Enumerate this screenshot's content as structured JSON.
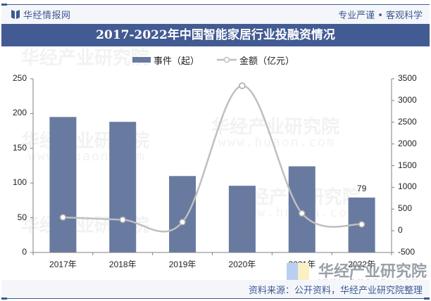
{
  "header": {
    "brand": "华经情报网",
    "slogan": "专业严谨 • 客观科学",
    "title": "2017-2022年中国智能家居行业投融资情况"
  },
  "legend": {
    "items": [
      {
        "name": "事件（起）",
        "type": "bar",
        "color": "#687aa0"
      },
      {
        "name": "金额（亿元）",
        "type": "line",
        "color": "#bfbfbf"
      }
    ]
  },
  "footer": {
    "source": "资料来源：公开资料，华经产业研究院整理"
  },
  "watermark": {
    "text": "华经产业研究院",
    "url": "www.huaon.com"
  },
  "colors": {
    "bar": "#687aa0",
    "line": "#bfbfbf",
    "title_bg": "#435b93",
    "brand": "#3d5a94"
  },
  "chart_data": {
    "type": "bar",
    "title": "2017-2022年中国智能家居行业投融资情况",
    "categories": [
      "2017年",
      "2018年",
      "2019年",
      "2020年",
      "2021年",
      "2022年"
    ],
    "series": [
      {
        "name": "事件（起）",
        "type": "bar",
        "axis": "left",
        "values": [
          195,
          188,
          110,
          96,
          124,
          79
        ]
      },
      {
        "name": "金额（亿元）",
        "type": "line",
        "axis": "right",
        "smooth": true,
        "values": [
          309,
          254,
          200,
          3340,
          401,
          147
        ]
      }
    ],
    "annotations": [
      {
        "category": "2022年",
        "series": "事件（起）",
        "label": "79"
      }
    ],
    "left_axis": {
      "ylim": [
        0,
        250
      ],
      "ticks": [
        "0",
        "50",
        "100",
        "150",
        "200",
        "250"
      ]
    },
    "right_axis": {
      "ylim": [
        -500,
        3500
      ],
      "ticks": [
        "-500",
        "0",
        "500",
        "1000",
        "1500",
        "2000",
        "2500",
        "3000",
        "3500"
      ]
    },
    "xlabel": "",
    "ylabel": "",
    "grid": false,
    "legend_position": "top"
  }
}
